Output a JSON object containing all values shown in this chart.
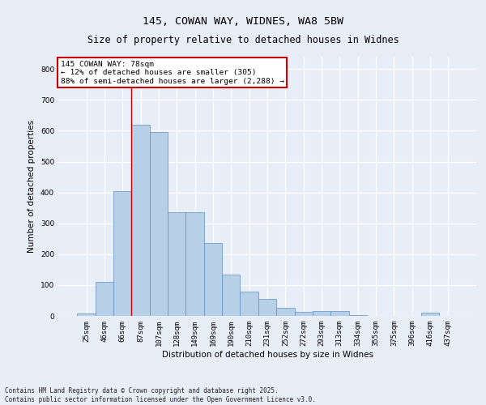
{
  "title_line1": "145, COWAN WAY, WIDNES, WA8 5BW",
  "title_line2": "Size of property relative to detached houses in Widnes",
  "xlabel": "Distribution of detached houses by size in Widnes",
  "ylabel": "Number of detached properties",
  "background_color": "#e8eef8",
  "bar_color": "#b8cfe8",
  "bar_edge_color": "#6090c0",
  "categories": [
    "25sqm",
    "46sqm",
    "66sqm",
    "87sqm",
    "107sqm",
    "128sqm",
    "149sqm",
    "169sqm",
    "190sqm",
    "210sqm",
    "231sqm",
    "252sqm",
    "272sqm",
    "293sqm",
    "313sqm",
    "334sqm",
    "355sqm",
    "375sqm",
    "396sqm",
    "416sqm",
    "437sqm"
  ],
  "values": [
    8,
    110,
    405,
    620,
    595,
    335,
    335,
    235,
    135,
    80,
    55,
    25,
    12,
    15,
    15,
    3,
    0,
    0,
    0,
    10,
    0
  ],
  "ylim": [
    0,
    840
  ],
  "yticks": [
    0,
    100,
    200,
    300,
    400,
    500,
    600,
    700,
    800
  ],
  "vline_color": "#cc0000",
  "vline_position": 2.5,
  "annotation_text": "145 COWAN WAY: 78sqm\n← 12% of detached houses are smaller (305)\n88% of semi-detached houses are larger (2,288) →",
  "footer_text": "Contains HM Land Registry data © Crown copyright and database right 2025.\nContains public sector information licensed under the Open Government Licence v3.0.",
  "grid_color": "#ffffff",
  "title_fontsize": 9.5,
  "subtitle_fontsize": 8.5,
  "axis_label_fontsize": 7.5,
  "tick_fontsize": 6.5,
  "annotation_fontsize": 6.8,
  "footer_fontsize": 5.5
}
